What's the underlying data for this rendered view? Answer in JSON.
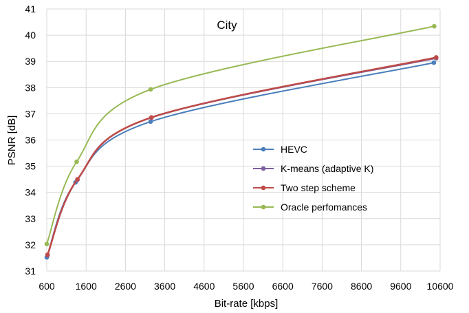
{
  "chart_data": {
    "type": "line",
    "title": "City",
    "xlabel": "Bit-rate [kbps]",
    "ylabel": "PSNR [dB]",
    "xlim": [
      600,
      10600
    ],
    "ylim": [
      31,
      41
    ],
    "xticks": [
      600,
      1600,
      2600,
      3600,
      4600,
      5600,
      6600,
      7600,
      8600,
      9600,
      10600
    ],
    "yticks": [
      31,
      32,
      33,
      34,
      35,
      36,
      37,
      38,
      39,
      40,
      41
    ],
    "grid": true,
    "legend_position": "right",
    "series": [
      {
        "name": "HEVC",
        "color": "#4a7ebb",
        "x": [
          600,
          1330,
          3240,
          10440
        ],
        "y": [
          31.52,
          34.38,
          36.7,
          38.95
        ]
      },
      {
        "name": "K-means (adaptive K)",
        "color": "#7d5fa0",
        "x": [
          620,
          1380,
          3260,
          10500
        ],
        "y": [
          31.6,
          34.48,
          36.85,
          39.12
        ]
      },
      {
        "name": "Two step scheme",
        "color": "#be4b48",
        "x": [
          620,
          1380,
          3260,
          10500
        ],
        "y": [
          31.62,
          34.5,
          36.86,
          39.15
        ]
      },
      {
        "name": "Oracle perfomances",
        "color": "#98b954",
        "x": [
          600,
          1360,
          3240,
          10450
        ],
        "y": [
          32.03,
          35.17,
          37.93,
          40.34
        ]
      }
    ]
  }
}
